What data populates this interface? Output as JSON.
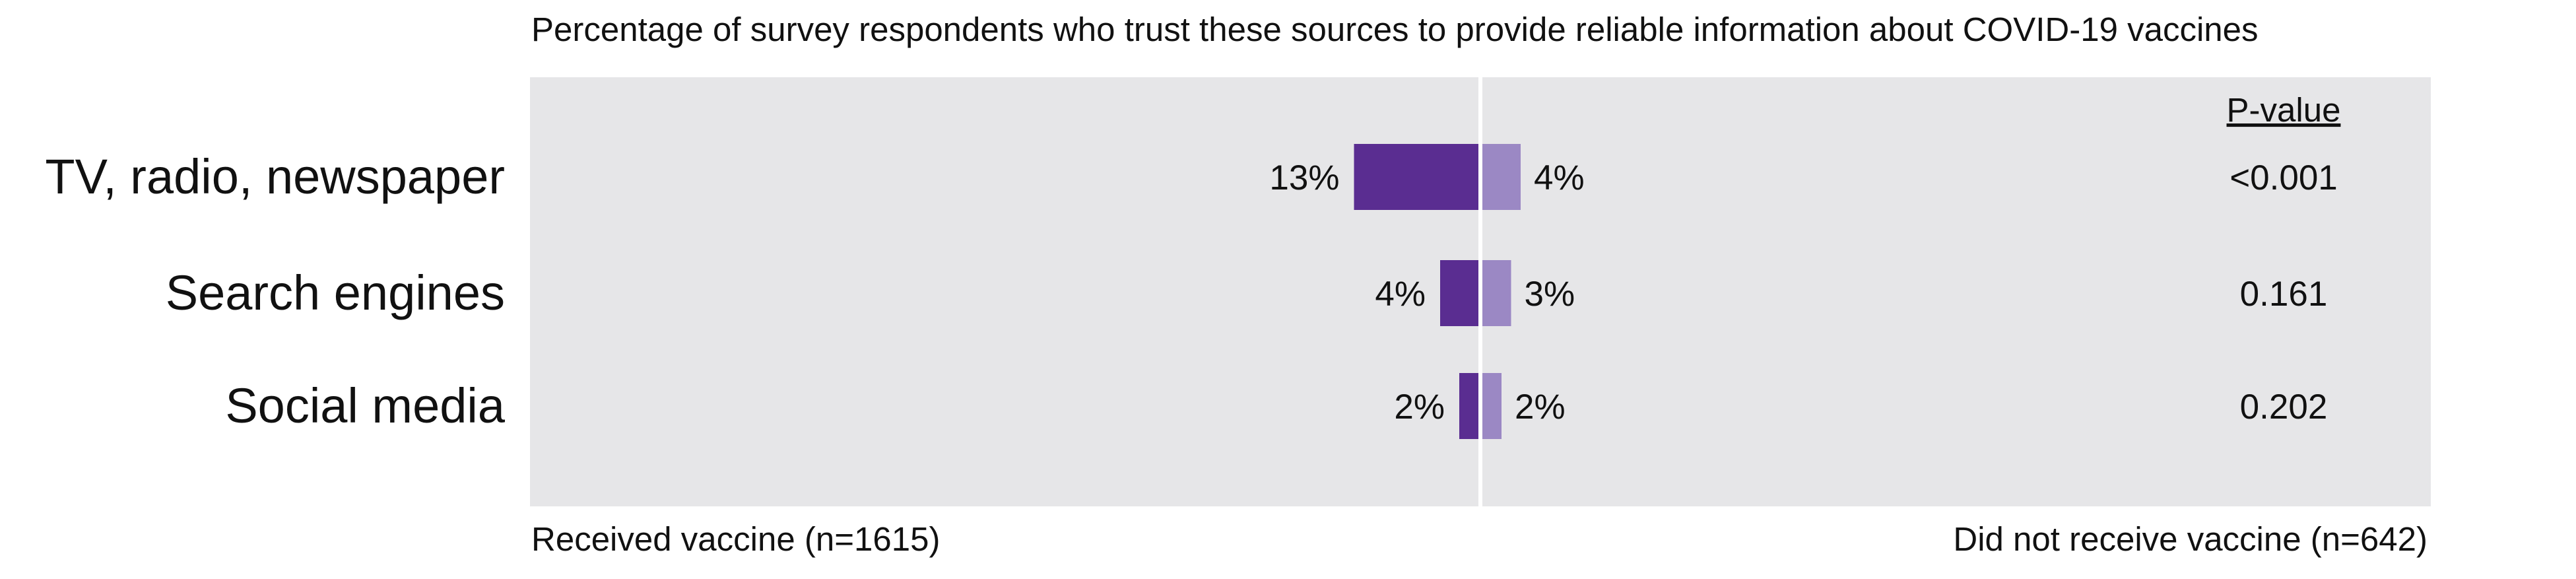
{
  "chart_data": {
    "type": "bar",
    "title": "Percentage of survey respondents who trust these sources to provide reliable information about COVID-19 vaccines",
    "categories": [
      "TV, radio, newspaper",
      "Search engines",
      "Social media"
    ],
    "series": [
      {
        "name": "Received vaccine (n=1615)",
        "values": [
          13,
          4,
          2
        ],
        "labels": [
          "13%",
          "4%",
          "2%"
        ],
        "color": "#5a2d91",
        "direction": "left"
      },
      {
        "name": "Did not receive vaccine (n=642)",
        "values": [
          4,
          3,
          2
        ],
        "labels": [
          "4%",
          "3%",
          "2%"
        ],
        "color": "#9b88c4",
        "direction": "right"
      }
    ],
    "pvalue_header": "P-value",
    "pvalues": [
      "<0.001",
      "0.161",
      "0.202"
    ],
    "panel_color": "#e6e6e8",
    "divider_color": "#ffffff",
    "grid": false
  }
}
